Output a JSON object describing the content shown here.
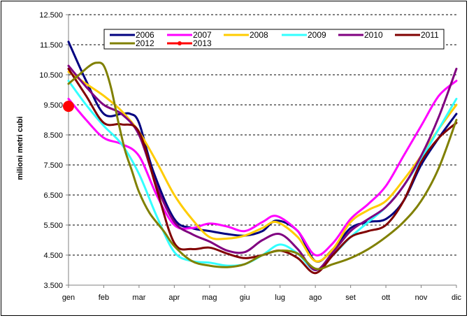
{
  "chart_data": {
    "type": "line",
    "title": "",
    "xlabel": "",
    "ylabel": "milioni metri cubi",
    "categories": [
      "gen",
      "feb",
      "mar",
      "apr",
      "mag",
      "giu",
      "lug",
      "ago",
      "set",
      "ott",
      "nov",
      "dic"
    ],
    "ylim": [
      3500,
      12500
    ],
    "yticks": [
      3500,
      4500,
      5500,
      6500,
      7500,
      8500,
      9500,
      10500,
      11500,
      12500
    ],
    "ytick_labels": [
      "3.500",
      "4.500",
      "5.500",
      "6.500",
      "7.500",
      "8.500",
      "9.500",
      "10.500",
      "11.500",
      "12.500"
    ],
    "grid": "horizontal dashed",
    "legend_position": "top",
    "series": [
      {
        "name": "2006",
        "color": "#000080",
        "x": [
          0,
          0.5,
          1,
          1.5,
          1.75,
          2,
          2.4,
          3,
          3.5,
          4,
          4.5,
          5,
          5.5,
          5.9,
          6.5,
          7,
          7.5,
          8,
          8.5,
          9,
          9.5,
          10,
          10.5,
          11
        ],
        "values": [
          11600,
          10300,
          9200,
          9200,
          9200,
          8900,
          7300,
          5700,
          5400,
          5300,
          5200,
          5150,
          5300,
          5650,
          5300,
          4300,
          4700,
          5400,
          5600,
          5700,
          6300,
          7500,
          8400,
          9200
        ]
      },
      {
        "name": "2007",
        "color": "#FF00FF",
        "x": [
          0,
          0.5,
          1,
          1.5,
          2,
          2.5,
          3,
          3.5,
          4,
          4.5,
          5,
          5.5,
          5.9,
          6.5,
          7,
          7.5,
          8,
          8.5,
          9,
          9.5,
          10,
          10.5,
          11
        ],
        "values": [
          9700,
          9000,
          8400,
          8200,
          7800,
          6500,
          5500,
          5400,
          5550,
          5450,
          5300,
          5600,
          5800,
          5300,
          4500,
          4900,
          5700,
          6200,
          6800,
          7800,
          8800,
          9800,
          10300
        ]
      },
      {
        "name": "2008",
        "color": "#FFCC00",
        "x": [
          0,
          0.5,
          1,
          1.5,
          2,
          2.5,
          3,
          3.5,
          4,
          4.5,
          5,
          5.5,
          5.9,
          6.5,
          7,
          7.5,
          8,
          8.5,
          9,
          9.5,
          10,
          10.5,
          11
        ],
        "values": [
          10600,
          10200,
          9800,
          9300,
          8600,
          7600,
          6500,
          5700,
          5100,
          5050,
          5150,
          5400,
          5600,
          5100,
          4300,
          4700,
          5600,
          6000,
          6300,
          7000,
          7800,
          8700,
          9500
        ]
      },
      {
        "name": "2009",
        "color": "#33FFFF",
        "x": [
          0,
          0.5,
          1,
          1.5,
          2,
          2.5,
          3,
          3.5,
          4,
          4.5,
          5,
          5.5,
          6,
          6.5,
          7,
          7.5,
          8,
          8.5,
          9,
          9.5,
          10,
          10.5,
          11
        ],
        "values": [
          10300,
          9500,
          8800,
          8200,
          7200,
          5800,
          4600,
          4300,
          4250,
          4150,
          4200,
          4500,
          4850,
          4550,
          4000,
          4500,
          5100,
          5600,
          6100,
          6800,
          7700,
          8700,
          9700
        ]
      },
      {
        "name": "2010",
        "color": "#800080",
        "x": [
          0,
          0.5,
          1,
          1.5,
          2,
          2.5,
          3,
          3.5,
          4,
          4.5,
          5,
          5.5,
          6,
          6.5,
          7,
          7.5,
          8,
          8.5,
          9,
          9.5,
          10,
          10.5,
          11
        ],
        "values": [
          10800,
          10100,
          9500,
          9200,
          8500,
          6800,
          5600,
          5200,
          4950,
          4650,
          4600,
          5000,
          5200,
          4700,
          4000,
          4600,
          5300,
          5700,
          6100,
          6800,
          7800,
          9100,
          10700
        ]
      },
      {
        "name": "2011",
        "color": "#800000",
        "x": [
          0,
          0.5,
          1,
          1.5,
          2,
          2.5,
          3,
          3.5,
          4,
          4.5,
          5,
          5.5,
          6,
          6.5,
          7,
          7.5,
          8,
          8.5,
          9,
          9.5,
          10,
          10.5,
          11
        ],
        "values": [
          10700,
          9800,
          8900,
          8850,
          8600,
          6700,
          4900,
          4700,
          4750,
          4550,
          4400,
          4500,
          4650,
          4400,
          3900,
          4500,
          5100,
          5300,
          5500,
          6300,
          7600,
          8400,
          8900
        ]
      },
      {
        "name": "2012",
        "color": "#808000",
        "x": [
          0,
          0.3,
          0.6,
          0.8,
          1,
          1.2,
          1.4,
          1.6,
          1.8,
          2,
          2.3,
          2.7,
          3,
          3.5,
          4,
          4.5,
          5,
          5.5,
          6,
          6.5,
          7,
          7.5,
          8,
          8.5,
          9,
          9.5,
          10,
          10.5,
          11
        ],
        "values": [
          10200,
          10500,
          10800,
          10900,
          10800,
          10100,
          9000,
          8000,
          7300,
          6600,
          5900,
          5300,
          4800,
          4300,
          4150,
          4100,
          4200,
          4500,
          4650,
          4550,
          4050,
          4200,
          4400,
          4700,
          5100,
          5600,
          6300,
          7400,
          9000
        ]
      },
      {
        "name": "2013",
        "color": "#FF0000",
        "x": [
          0
        ],
        "values": [
          9450
        ]
      }
    ]
  }
}
